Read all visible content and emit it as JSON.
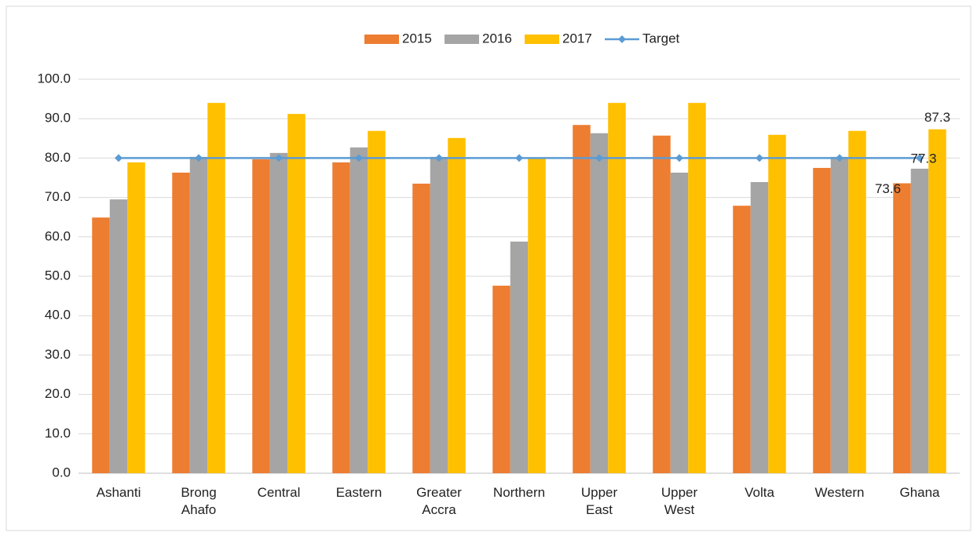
{
  "chart_data": {
    "type": "bar",
    "categories": [
      "Ashanti",
      "Brong Ahafo",
      "Central",
      "Eastern",
      "Greater Accra",
      "Northern",
      "Upper East",
      "Upper West",
      "Volta",
      "Western",
      "Ghana"
    ],
    "series": [
      {
        "name": "2015",
        "color": "#ed7d31",
        "values": [
          64.9,
          76.3,
          79.7,
          78.9,
          73.5,
          47.6,
          88.4,
          85.7,
          67.9,
          77.5,
          73.6
        ],
        "value_labels": [
          null,
          null,
          null,
          null,
          null,
          null,
          null,
          null,
          null,
          null,
          "73.6"
        ]
      },
      {
        "name": "2016",
        "color": "#a5a5a5",
        "values": [
          69.5,
          80.3,
          81.3,
          82.7,
          80.3,
          58.8,
          86.3,
          76.3,
          73.9,
          80.3,
          77.3
        ],
        "value_labels": [
          null,
          null,
          null,
          null,
          null,
          null,
          null,
          null,
          null,
          null,
          "77.3"
        ]
      },
      {
        "name": "2017",
        "color": "#ffc000",
        "values": [
          78.9,
          94.0,
          91.2,
          86.9,
          85.1,
          79.9,
          94.0,
          94.0,
          85.9,
          86.9,
          87.3
        ],
        "value_labels": [
          null,
          null,
          null,
          null,
          null,
          null,
          null,
          null,
          null,
          null,
          "87.3"
        ]
      },
      {
        "name": "Target",
        "type": "line",
        "color": "#5b9bd5",
        "values": [
          80,
          80,
          80,
          80,
          80,
          80,
          80,
          80,
          80,
          80,
          80
        ]
      }
    ],
    "ylim": [
      0,
      100
    ],
    "yticks": [
      {
        "value": 0,
        "label": "0.0"
      },
      {
        "value": 10,
        "label": "10.0"
      },
      {
        "value": 20,
        "label": "20.0"
      },
      {
        "value": 30,
        "label": "30.0"
      },
      {
        "value": 40,
        "label": "40.0"
      },
      {
        "value": 50,
        "label": "50.0"
      },
      {
        "value": 60,
        "label": "60.0"
      },
      {
        "value": 70,
        "label": "70.0"
      },
      {
        "value": 80,
        "label": "80.0"
      },
      {
        "value": 90,
        "label": "90.0"
      },
      {
        "value": 100,
        "label": "100.0"
      }
    ],
    "grid": true,
    "legend": "top"
  }
}
